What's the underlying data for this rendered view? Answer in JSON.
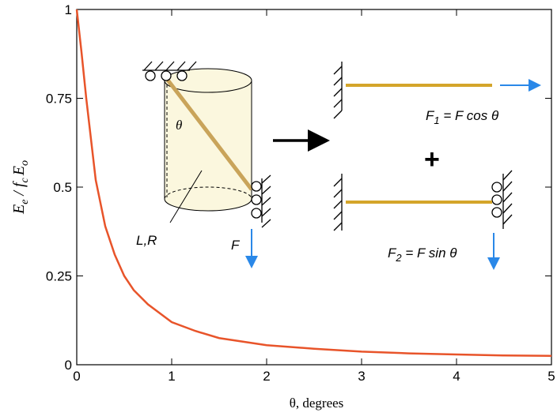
{
  "chart_data": {
    "type": "line",
    "x": [
      0,
      0.05,
      0.1,
      0.2,
      0.3,
      0.4,
      0.5,
      0.6,
      0.75,
      1.0,
      1.25,
      1.5,
      2.0,
      2.5,
      3.0,
      3.5,
      4.0,
      4.5,
      5.0
    ],
    "values": [
      1,
      0.88,
      0.75,
      0.52,
      0.39,
      0.31,
      0.25,
      0.21,
      0.17,
      0.12,
      0.095,
      0.075,
      0.055,
      0.045,
      0.037,
      0.032,
      0.029,
      0.026,
      0.025
    ],
    "color": "#e8542a",
    "xlim": [
      0,
      5
    ],
    "xticks": [
      0,
      1,
      2,
      3,
      4,
      5
    ],
    "ylim": [
      0,
      1
    ],
    "yticks": [
      0,
      0.25,
      0.5,
      0.75,
      1
    ],
    "x_label": "θ, degrees",
    "y_label": [
      "E",
      "e",
      " / f",
      "c",
      "E",
      "o"
    ],
    "annotations": {
      "theta": "θ",
      "length_radius": "L,R",
      "force": "F",
      "f1": [
        "F",
        "1",
        " = F cos θ"
      ],
      "plus": "+",
      "f2": [
        "F",
        "2",
        " = F sin θ"
      ]
    }
  }
}
